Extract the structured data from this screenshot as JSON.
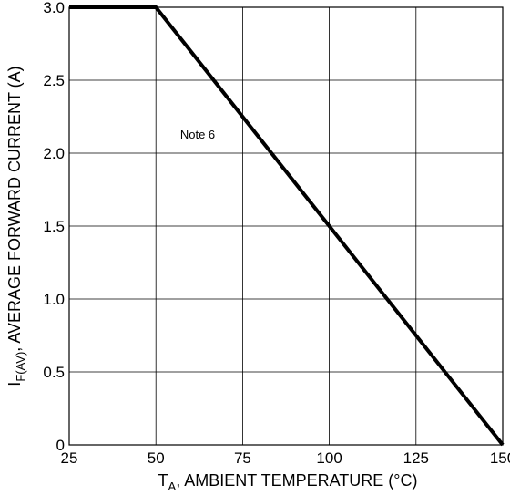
{
  "chart_data": {
    "type": "line",
    "xlabel": {
      "main": "T",
      "sub": "A",
      "rest": ", AMBIENT TEMPERATURE (°C)"
    },
    "ylabel": {
      "main": "I",
      "sub": "F(AV)",
      "rest": ", AVERAGE FORWARD CURRENT (A)"
    },
    "xlim": [
      25,
      150
    ],
    "ylim": [
      0,
      3.0
    ],
    "x_ticks": [
      {
        "value": 25,
        "label": "25"
      },
      {
        "value": 50,
        "label": "50"
      },
      {
        "value": 75,
        "label": "75"
      },
      {
        "value": 100,
        "label": "100"
      },
      {
        "value": 125,
        "label": "125"
      },
      {
        "value": 150,
        "label": "150"
      }
    ],
    "y_ticks": [
      {
        "value": 0,
        "label": "0"
      },
      {
        "value": 0.5,
        "label": "0.5"
      },
      {
        "value": 1.0,
        "label": "1.0"
      },
      {
        "value": 1.5,
        "label": "1.5"
      },
      {
        "value": 2.0,
        "label": "2.0"
      },
      {
        "value": 2.5,
        "label": "2.5"
      },
      {
        "value": 3.0,
        "label": "3.0"
      }
    ],
    "grid": true,
    "series": [
      {
        "x": [
          25,
          50,
          150
        ],
        "y": [
          3.0,
          3.0,
          0
        ],
        "color": "#000000"
      }
    ],
    "annotations": [
      {
        "text": "Note 6",
        "x": 57,
        "y": 2.1
      }
    ]
  }
}
